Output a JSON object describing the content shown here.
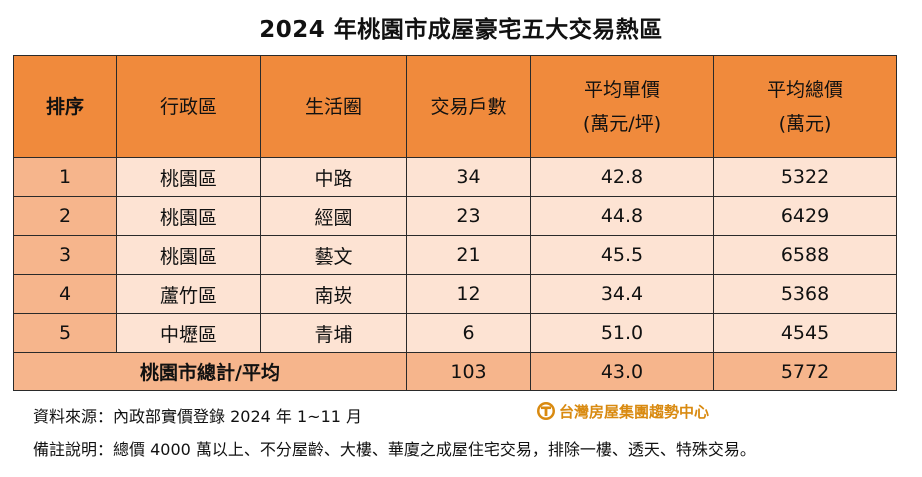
{
  "title": "2024 年桃園市成屋豪宅五大交易熱區",
  "table": {
    "headers": {
      "rank": "排序",
      "district": "行政區",
      "area": "生活圈",
      "count": "交易戶數",
      "unit_price_l1": "平均單價",
      "unit_price_l2": "(萬元/坪)",
      "total_price_l1": "平均總價",
      "total_price_l2": "(萬元)"
    },
    "rows": [
      {
        "rank": "1",
        "district": "桃園區",
        "area": "中路",
        "count": "34",
        "unit_price": "42.8",
        "total_price": "5322"
      },
      {
        "rank": "2",
        "district": "桃園區",
        "area": "經國",
        "count": "23",
        "unit_price": "44.8",
        "total_price": "6429"
      },
      {
        "rank": "3",
        "district": "桃園區",
        "area": "藝文",
        "count": "21",
        "unit_price": "45.5",
        "total_price": "6588"
      },
      {
        "rank": "4",
        "district": "蘆竹區",
        "area": "南崁",
        "count": "12",
        "unit_price": "34.4",
        "total_price": "5368"
      },
      {
        "rank": "5",
        "district": "中壢區",
        "area": "青埔",
        "count": "6",
        "unit_price": "51.0",
        "total_price": "4545"
      }
    ],
    "summary": {
      "label": "桃園市總計/平均",
      "count": "103",
      "unit_price": "43.0",
      "total_price": "5772"
    }
  },
  "notes": {
    "source": "資料來源：內政部實價登錄 2024 年 1~11 月",
    "remark": "備註說明：總價 4000 萬以上、不分屋齡、大樓、華廈之成屋住宅交易，排除一樓、透天、特殊交易。"
  },
  "logo": {
    "text": "台灣房屋集團趨勢中心",
    "icon": "taiwan-realty-logo-icon",
    "color": "#d98a10"
  },
  "colors": {
    "header_bg": "#f08a3c",
    "rank_bg": "#f6b58c",
    "cell_bg": "#fde3d3"
  }
}
